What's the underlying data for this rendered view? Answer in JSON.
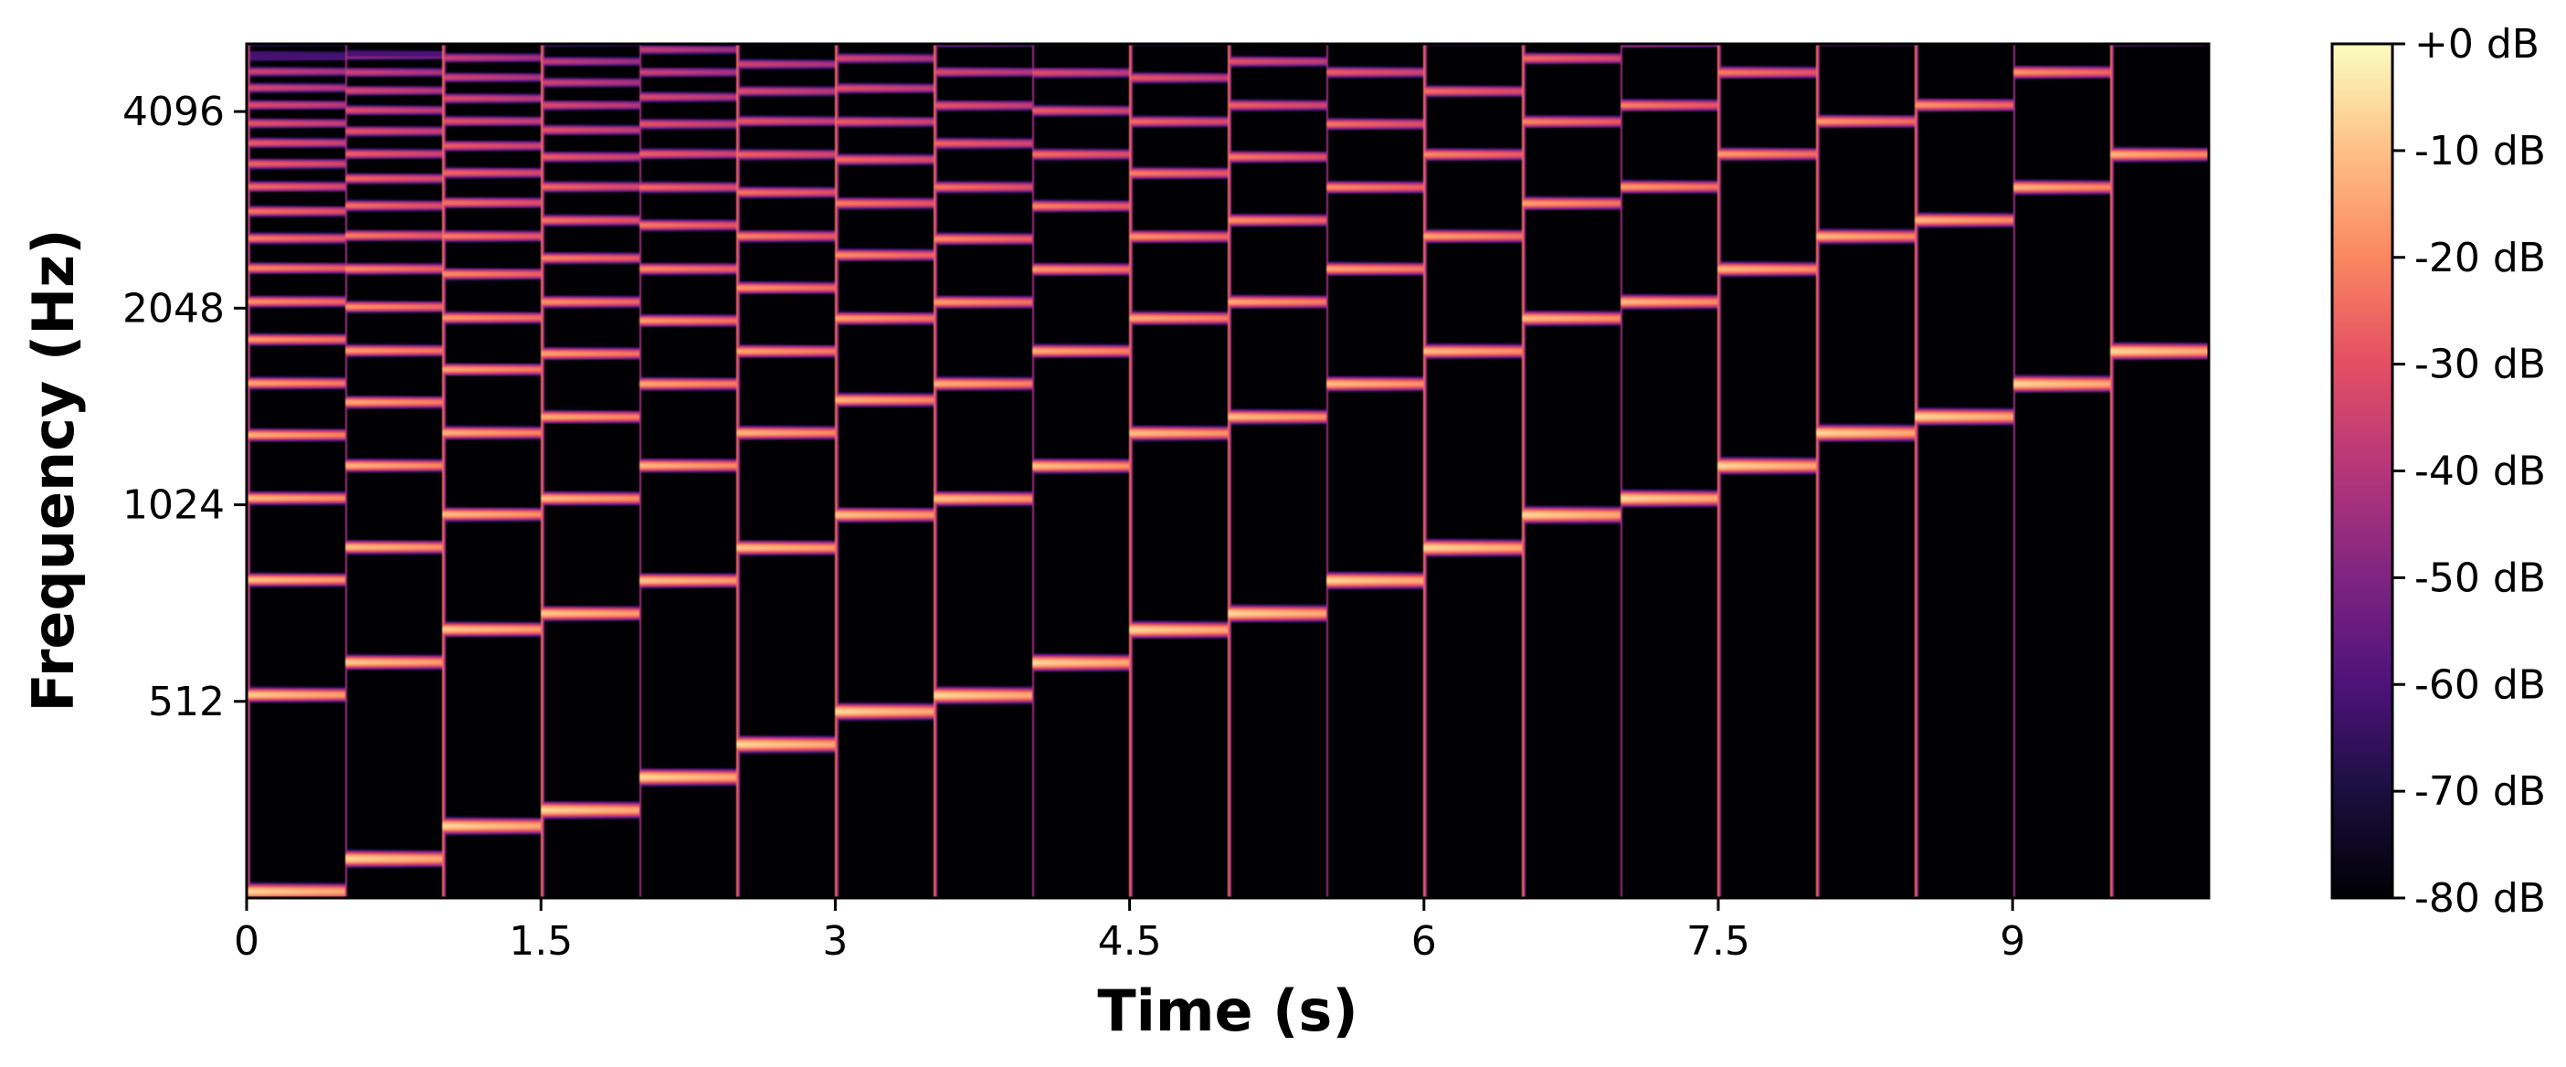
{
  "chart_data": {
    "type": "heatmap",
    "title": "",
    "xlabel": "Time (s)",
    "ylabel": "Frequency (Hz)",
    "x_ticks": [
      0,
      1.5,
      3,
      4.5,
      6,
      7.5,
      9
    ],
    "x_tick_labels": [
      "0",
      "1.5",
      "3",
      "4.5",
      "6",
      "7.5",
      "9"
    ],
    "xlim": [
      0,
      10
    ],
    "y_scale": "log2",
    "y_ticks": [
      512,
      1024,
      2048,
      4096
    ],
    "y_tick_labels": [
      "512",
      "1024",
      "2048",
      "4096"
    ],
    "ylim_hz": [
      256,
      5200
    ],
    "colormap": "magma",
    "colorbar": {
      "range_db": [
        -80,
        0
      ],
      "ticks": [
        0,
        -10,
        -20,
        -30,
        -40,
        -50,
        -60,
        -70,
        -80
      ],
      "tick_labels": [
        "+0 dB",
        "-10 dB",
        "-20 dB",
        "-30 dB",
        "-40 dB",
        "-50 dB",
        "-60 dB",
        "-70 dB",
        "-80 dB"
      ]
    },
    "segment_duration_s": 0.5,
    "segment_starts_s": [
      0,
      0.5,
      1,
      1.5,
      2,
      2.5,
      3,
      3.5,
      4,
      4.5,
      5,
      5.5,
      6,
      6.5,
      7,
      7.5,
      8,
      8.5,
      9,
      9.5
    ],
    "fundamentals_hz": [
      262,
      294,
      330,
      349,
      392,
      440,
      494,
      523,
      587,
      659,
      698,
      784,
      880,
      988,
      1047,
      1175,
      1319,
      1397,
      1568,
      1760
    ]
  }
}
